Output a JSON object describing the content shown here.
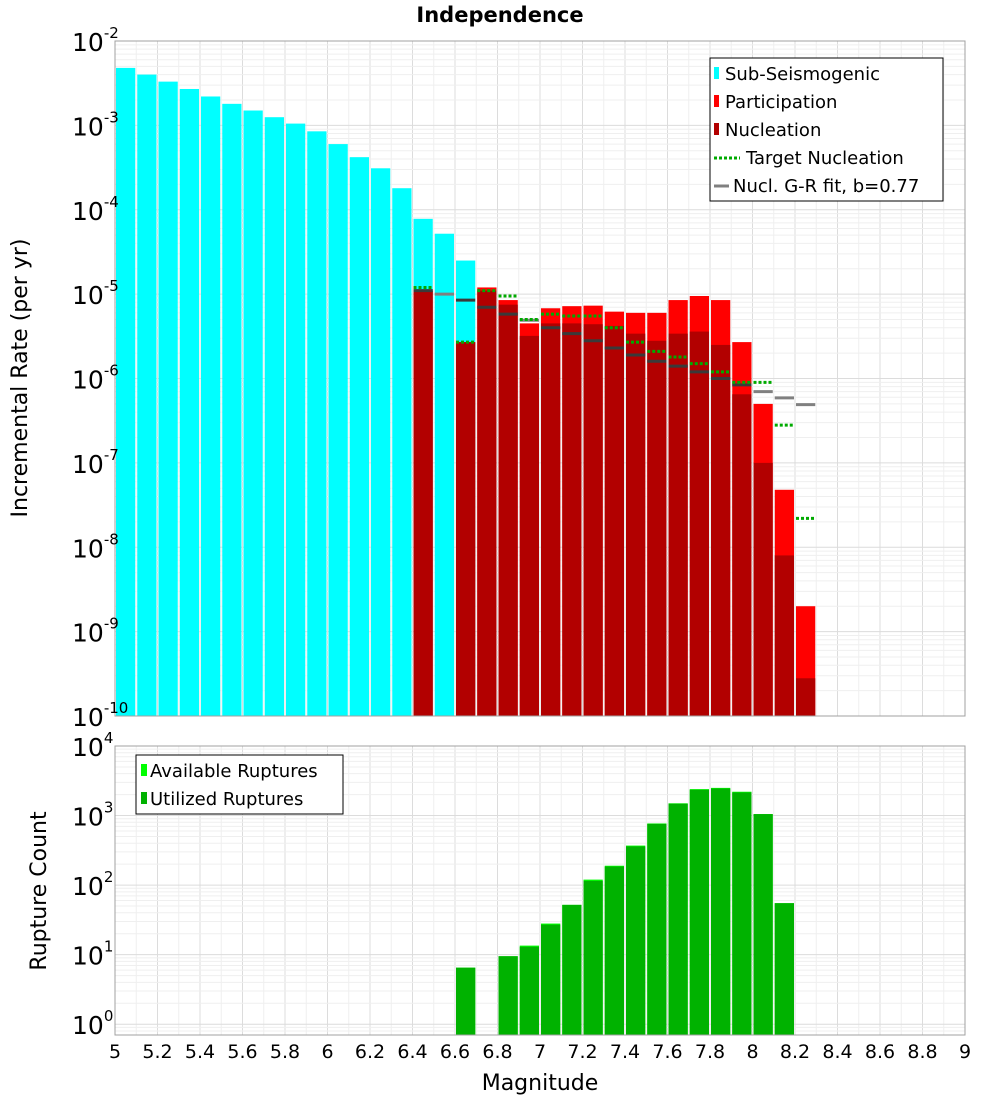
{
  "chart_data": [
    {
      "type": "bar",
      "title": "Independence",
      "xlabel": "",
      "ylabel": "Incremental Rate (per yr)",
      "yscale": "log",
      "xlim": [
        5,
        9
      ],
      "ylim": [
        1e-10,
        0.01
      ],
      "legend_placement": "top-right",
      "x": [
        5.05,
        5.15,
        5.25,
        5.35,
        5.45,
        5.55,
        5.65,
        5.75,
        5.85,
        5.95,
        6.05,
        6.15,
        6.25,
        6.35,
        6.45,
        6.55,
        6.65,
        6.75,
        6.85,
        6.95,
        7.05,
        7.15,
        7.25,
        7.35,
        7.45,
        7.55,
        7.65,
        7.75,
        7.85,
        7.95,
        8.05,
        8.15,
        8.25
      ],
      "series": [
        {
          "name": "Sub-Seismogenic",
          "color": "#00ffff",
          "values": [
            0.0048,
            0.004,
            0.0033,
            0.0027,
            0.0022,
            0.0018,
            0.0015,
            0.00125,
            0.00105,
            0.00085,
            0.0006,
            0.00042,
            0.00031,
            0.00018,
            7.8e-05,
            5.2e-05,
            2.5e-05,
            null,
            null,
            null,
            null,
            null,
            null,
            null,
            null,
            null,
            null,
            null,
            null,
            null,
            null,
            null,
            null
          ]
        },
        {
          "name": "Participation",
          "color": "#ff0000",
          "values": [
            null,
            null,
            null,
            null,
            null,
            null,
            null,
            null,
            null,
            null,
            null,
            null,
            null,
            null,
            1.1e-05,
            null,
            2.7e-06,
            1.2e-05,
            8.5e-06,
            4.5e-06,
            6.8e-06,
            7.2e-06,
            7.3e-06,
            6.2e-06,
            6e-06,
            6e-06,
            8.5e-06,
            9.5e-06,
            8.5e-06,
            2.7e-06,
            5e-07,
            4.8e-08,
            2e-09
          ]
        },
        {
          "name": "Nucleation",
          "color": "#b20000",
          "values": [
            null,
            null,
            null,
            null,
            null,
            null,
            null,
            null,
            null,
            null,
            null,
            null,
            null,
            null,
            1.1e-05,
            null,
            2.7e-06,
            1.1e-05,
            7.5e-06,
            3.2e-06,
            4.5e-06,
            4.5e-06,
            4.4e-06,
            4.2e-06,
            3.4e-06,
            2.8e-06,
            3.4e-06,
            3.6e-06,
            2.5e-06,
            6.5e-07,
            1e-07,
            8e-09,
            2.8e-10
          ]
        },
        {
          "name": "Target Nucleation",
          "color": "#00aa00",
          "style": "dotted",
          "values": [
            null,
            null,
            null,
            null,
            null,
            null,
            null,
            null,
            null,
            null,
            null,
            null,
            null,
            null,
            1.2e-05,
            null,
            2.7e-06,
            1.1e-05,
            9.5e-06,
            5e-06,
            5.8e-06,
            5.5e-06,
            5.5e-06,
            4e-06,
            2.7e-06,
            2.1e-06,
            1.8e-06,
            1.5e-06,
            1.2e-06,
            9e-07,
            9e-07,
            2.8e-07,
            2.2e-08
          ]
        },
        {
          "name": "Nucl. G-R fit, b=0.77",
          "color": "#808080",
          "style": "solid",
          "values": [
            null,
            null,
            null,
            null,
            null,
            null,
            null,
            null,
            null,
            null,
            null,
            null,
            null,
            null,
            1.1e-05,
            1e-05,
            8.5e-06,
            7e-06,
            5.8e-06,
            4.9e-06,
            4e-06,
            3.4e-06,
            2.8e-06,
            2.3e-06,
            1.9e-06,
            1.6e-06,
            1.4e-06,
            1.2e-06,
            1e-06,
            8.4e-07,
            7e-07,
            5.9e-07,
            4.9e-07
          ]
        }
      ]
    },
    {
      "type": "bar",
      "title": "",
      "xlabel": "Magnitude",
      "ylabel": "Rupture Count",
      "yscale": "log",
      "xlim": [
        5,
        9
      ],
      "ylim": [
        0.7,
        10000
      ],
      "xticks": [
        "5",
        "5.2",
        "5.4",
        "5.6",
        "5.8",
        "6",
        "6.2",
        "6.4",
        "6.6",
        "6.8",
        "7",
        "7.2",
        "7.4",
        "7.6",
        "7.8",
        "8",
        "8.2",
        "8.4",
        "8.6",
        "8.8",
        "9"
      ],
      "legend_placement": "top-left",
      "x": [
        6.65,
        6.85,
        6.95,
        7.05,
        7.15,
        7.25,
        7.35,
        7.45,
        7.55,
        7.65,
        7.75,
        7.85,
        7.95,
        8.05,
        8.15
      ],
      "series": [
        {
          "name": "Available Ruptures",
          "color": "#00ff00",
          "values": [
            6.5,
            9.5,
            13.5,
            28,
            52,
            120,
            190,
            370,
            770,
            1500,
            2400,
            2500,
            2200,
            1050,
            55
          ]
        },
        {
          "name": "Utilized Ruptures",
          "color": "#00b200",
          "values": [
            6.5,
            9.5,
            13,
            27,
            52,
            115,
            185,
            360,
            760,
            1480,
            2350,
            2450,
            2150,
            1050,
            55
          ]
        }
      ]
    }
  ]
}
